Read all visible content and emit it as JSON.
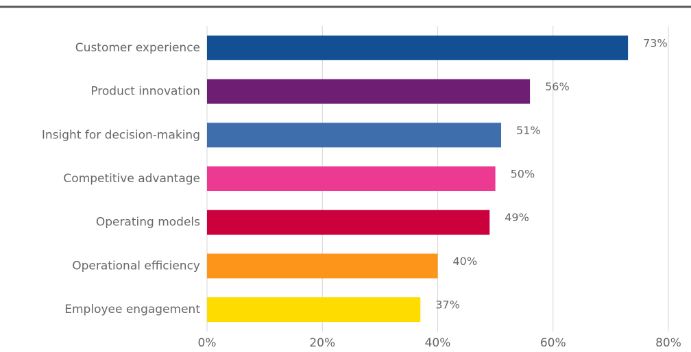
{
  "chart_data": {
    "type": "bar",
    "orientation": "horizontal",
    "categories": [
      "Customer experience",
      "Product innovation",
      "Insight for decision-making",
      "Competitive advantage",
      "Operating models",
      "Operational efficiency",
      "Employee engagement"
    ],
    "values": [
      73,
      56,
      51,
      50,
      49,
      40,
      37
    ],
    "value_labels": [
      "73%",
      "56%",
      "51%",
      "50%",
      "49%",
      "40%",
      "37%"
    ],
    "colors": [
      "#134f93",
      "#6e1f74",
      "#3f6ead",
      "#ec3a93",
      "#cc003d",
      "#fd951b",
      "#fedc00"
    ],
    "xlim": [
      0,
      80
    ],
    "xticks": [
      {
        "value": 0,
        "label": "0%"
      },
      {
        "value": 20,
        "label": "20%"
      },
      {
        "value": 40,
        "label": "40%"
      },
      {
        "value": 60,
        "label": "60%"
      },
      {
        "value": 80,
        "label": "80%"
      }
    ],
    "grid": true
  }
}
